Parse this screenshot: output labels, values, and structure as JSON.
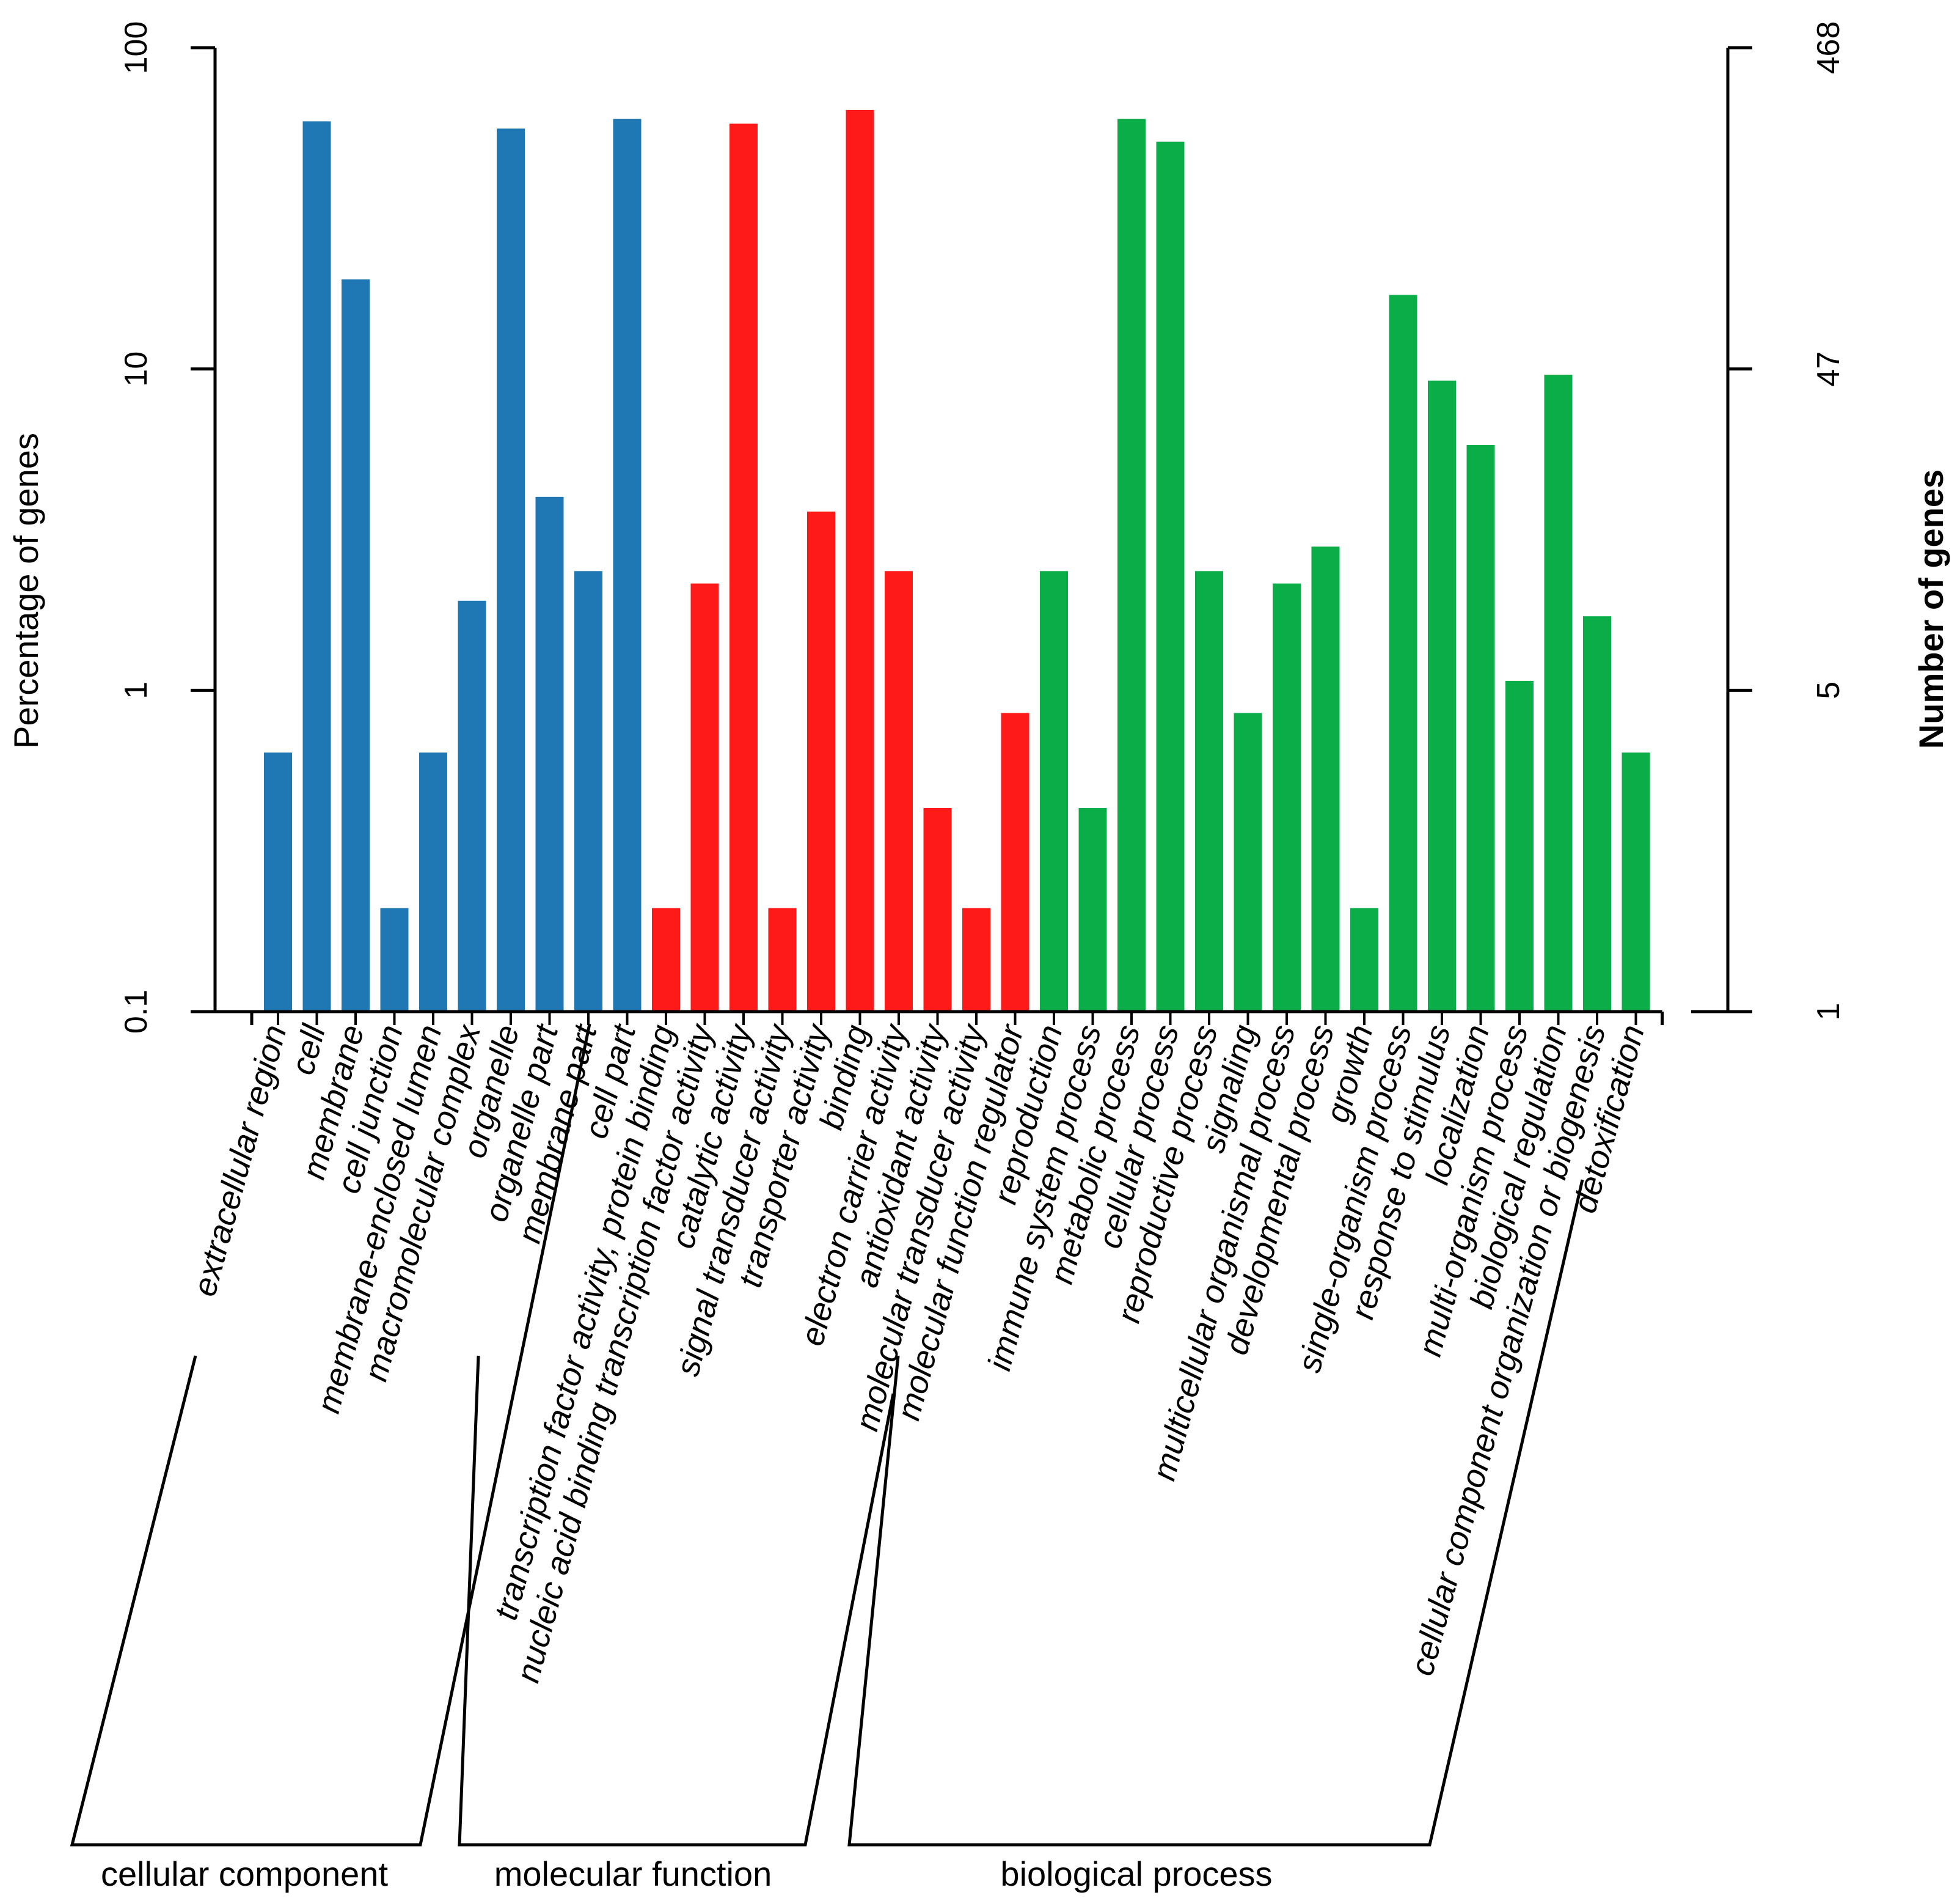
{
  "chart_data": {
    "type": "bar",
    "scale": "log",
    "ylim": [
      0.1,
      100
    ],
    "ylabel": "Percentage of genes",
    "y2label": "Number of genes",
    "y_ticks": [
      "0.1",
      "1",
      "10",
      "100"
    ],
    "y2_ticks": [
      "1",
      "5",
      "47",
      "468"
    ],
    "groups": [
      {
        "name": "cellular component",
        "color": "#1f77b4",
        "categories": [
          "extracellular region",
          "cell",
          "membrane",
          "cell junction",
          "membrane-enclosed lumen",
          "macromolecular complex",
          "organelle",
          "organelle part",
          "membrane part",
          "cell part"
        ],
        "values": [
          0.64,
          59,
          19,
          0.21,
          0.64,
          1.9,
          56,
          4.0,
          2.35,
          60
        ]
      },
      {
        "name": "molecular function",
        "color": "#ff1a1a",
        "categories": [
          "transcription factor activity, protein binding",
          "nucleic acid binding transcription factor activity",
          "catalytic activity",
          "signal transducer activity",
          "transporter activity",
          "binding",
          "electron carrier activity",
          "antioxidant activity",
          "molecular transducer activity",
          "molecular function regulator"
        ],
        "values": [
          0.21,
          2.15,
          58,
          0.21,
          3.6,
          64,
          2.35,
          0.43,
          0.21,
          0.85
        ]
      },
      {
        "name": "biological process",
        "color": "#0aad48",
        "categories": [
          "reproduction",
          "immune system process",
          "metabolic process",
          "cellular process",
          "reproductive process",
          "signaling",
          "multicellular organismal process",
          "developmental process",
          "growth",
          "single-organism process",
          "response to stimulus",
          "localization",
          "multi-organism process",
          "biological regulation",
          "cellular component organization or biogenesis",
          "detoxification"
        ],
        "values": [
          2.35,
          0.43,
          60,
          51,
          2.35,
          0.85,
          2.15,
          2.8,
          0.21,
          17,
          9.2,
          5.8,
          1.07,
          9.6,
          1.7,
          0.64
        ]
      }
    ]
  }
}
